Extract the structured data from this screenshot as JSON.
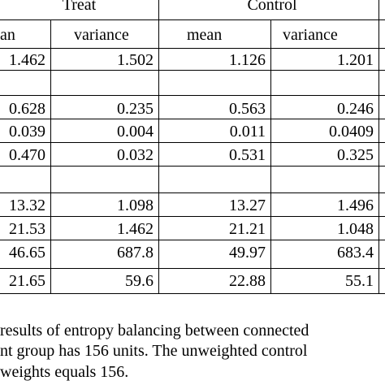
{
  "table": {
    "group_headers": [
      "Treat",
      "Control"
    ],
    "column_headers": [
      "an",
      "variance",
      "mean",
      "variance"
    ],
    "rows": [
      [
        "1.462",
        "1.502",
        "1.126",
        "1.201"
      ],
      [
        "0.628",
        "0.235",
        "0.563",
        "0.246"
      ],
      [
        "0.039",
        "0.004",
        "0.011",
        "0.0409"
      ],
      [
        "0.470",
        "0.032",
        "0.531",
        "0.325"
      ],
      [
        "13.32",
        "1.098",
        "13.27",
        "1.496"
      ],
      [
        "21.53",
        "1.462",
        "21.21",
        "1.048"
      ],
      [
        "46.65",
        "687.8",
        "49.97",
        "683.4"
      ],
      [
        "21.65",
        "59.6",
        "22.88",
        "55.1"
      ]
    ]
  },
  "caption": {
    "lines": [
      "results of entropy balancing between connected",
      "nt group has 156 units. The unweighted control",
      "weights equals 156."
    ]
  }
}
